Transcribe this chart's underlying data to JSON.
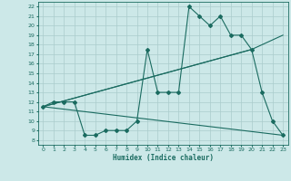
{
  "xlabel": "Humidex (Indice chaleur)",
  "bg_color": "#cce8e8",
  "grid_color": "#aacccc",
  "line_color": "#1a6b60",
  "xlim": [
    -0.5,
    23.5
  ],
  "ylim": [
    7.5,
    22.5
  ],
  "xticks": [
    0,
    1,
    2,
    3,
    4,
    5,
    6,
    7,
    8,
    9,
    10,
    11,
    12,
    13,
    14,
    15,
    16,
    17,
    18,
    19,
    20,
    21,
    22,
    23
  ],
  "yticks": [
    8,
    9,
    10,
    11,
    12,
    13,
    14,
    15,
    16,
    17,
    18,
    19,
    20,
    21,
    22
  ],
  "jagged_x": [
    0,
    1,
    2,
    3,
    4,
    5,
    6,
    7,
    8,
    9,
    10,
    11,
    12,
    13,
    14,
    15,
    16,
    17,
    18,
    19,
    20,
    21,
    22,
    23
  ],
  "jagged_y": [
    11.5,
    12,
    12,
    12,
    8.5,
    8.5,
    9,
    9,
    9,
    10,
    17.5,
    13,
    13,
    13,
    22,
    21,
    20,
    21,
    19,
    19,
    17.5,
    13,
    10,
    8.5
  ],
  "upper_line_x": [
    0,
    20,
    23
  ],
  "upper_line_y": [
    11.5,
    17.5,
    19
  ],
  "middle_line_x": [
    0,
    20
  ],
  "middle_line_y": [
    11.5,
    17.5
  ],
  "lower_line_x": [
    0,
    23
  ],
  "lower_line_y": [
    11.5,
    8.5
  ]
}
